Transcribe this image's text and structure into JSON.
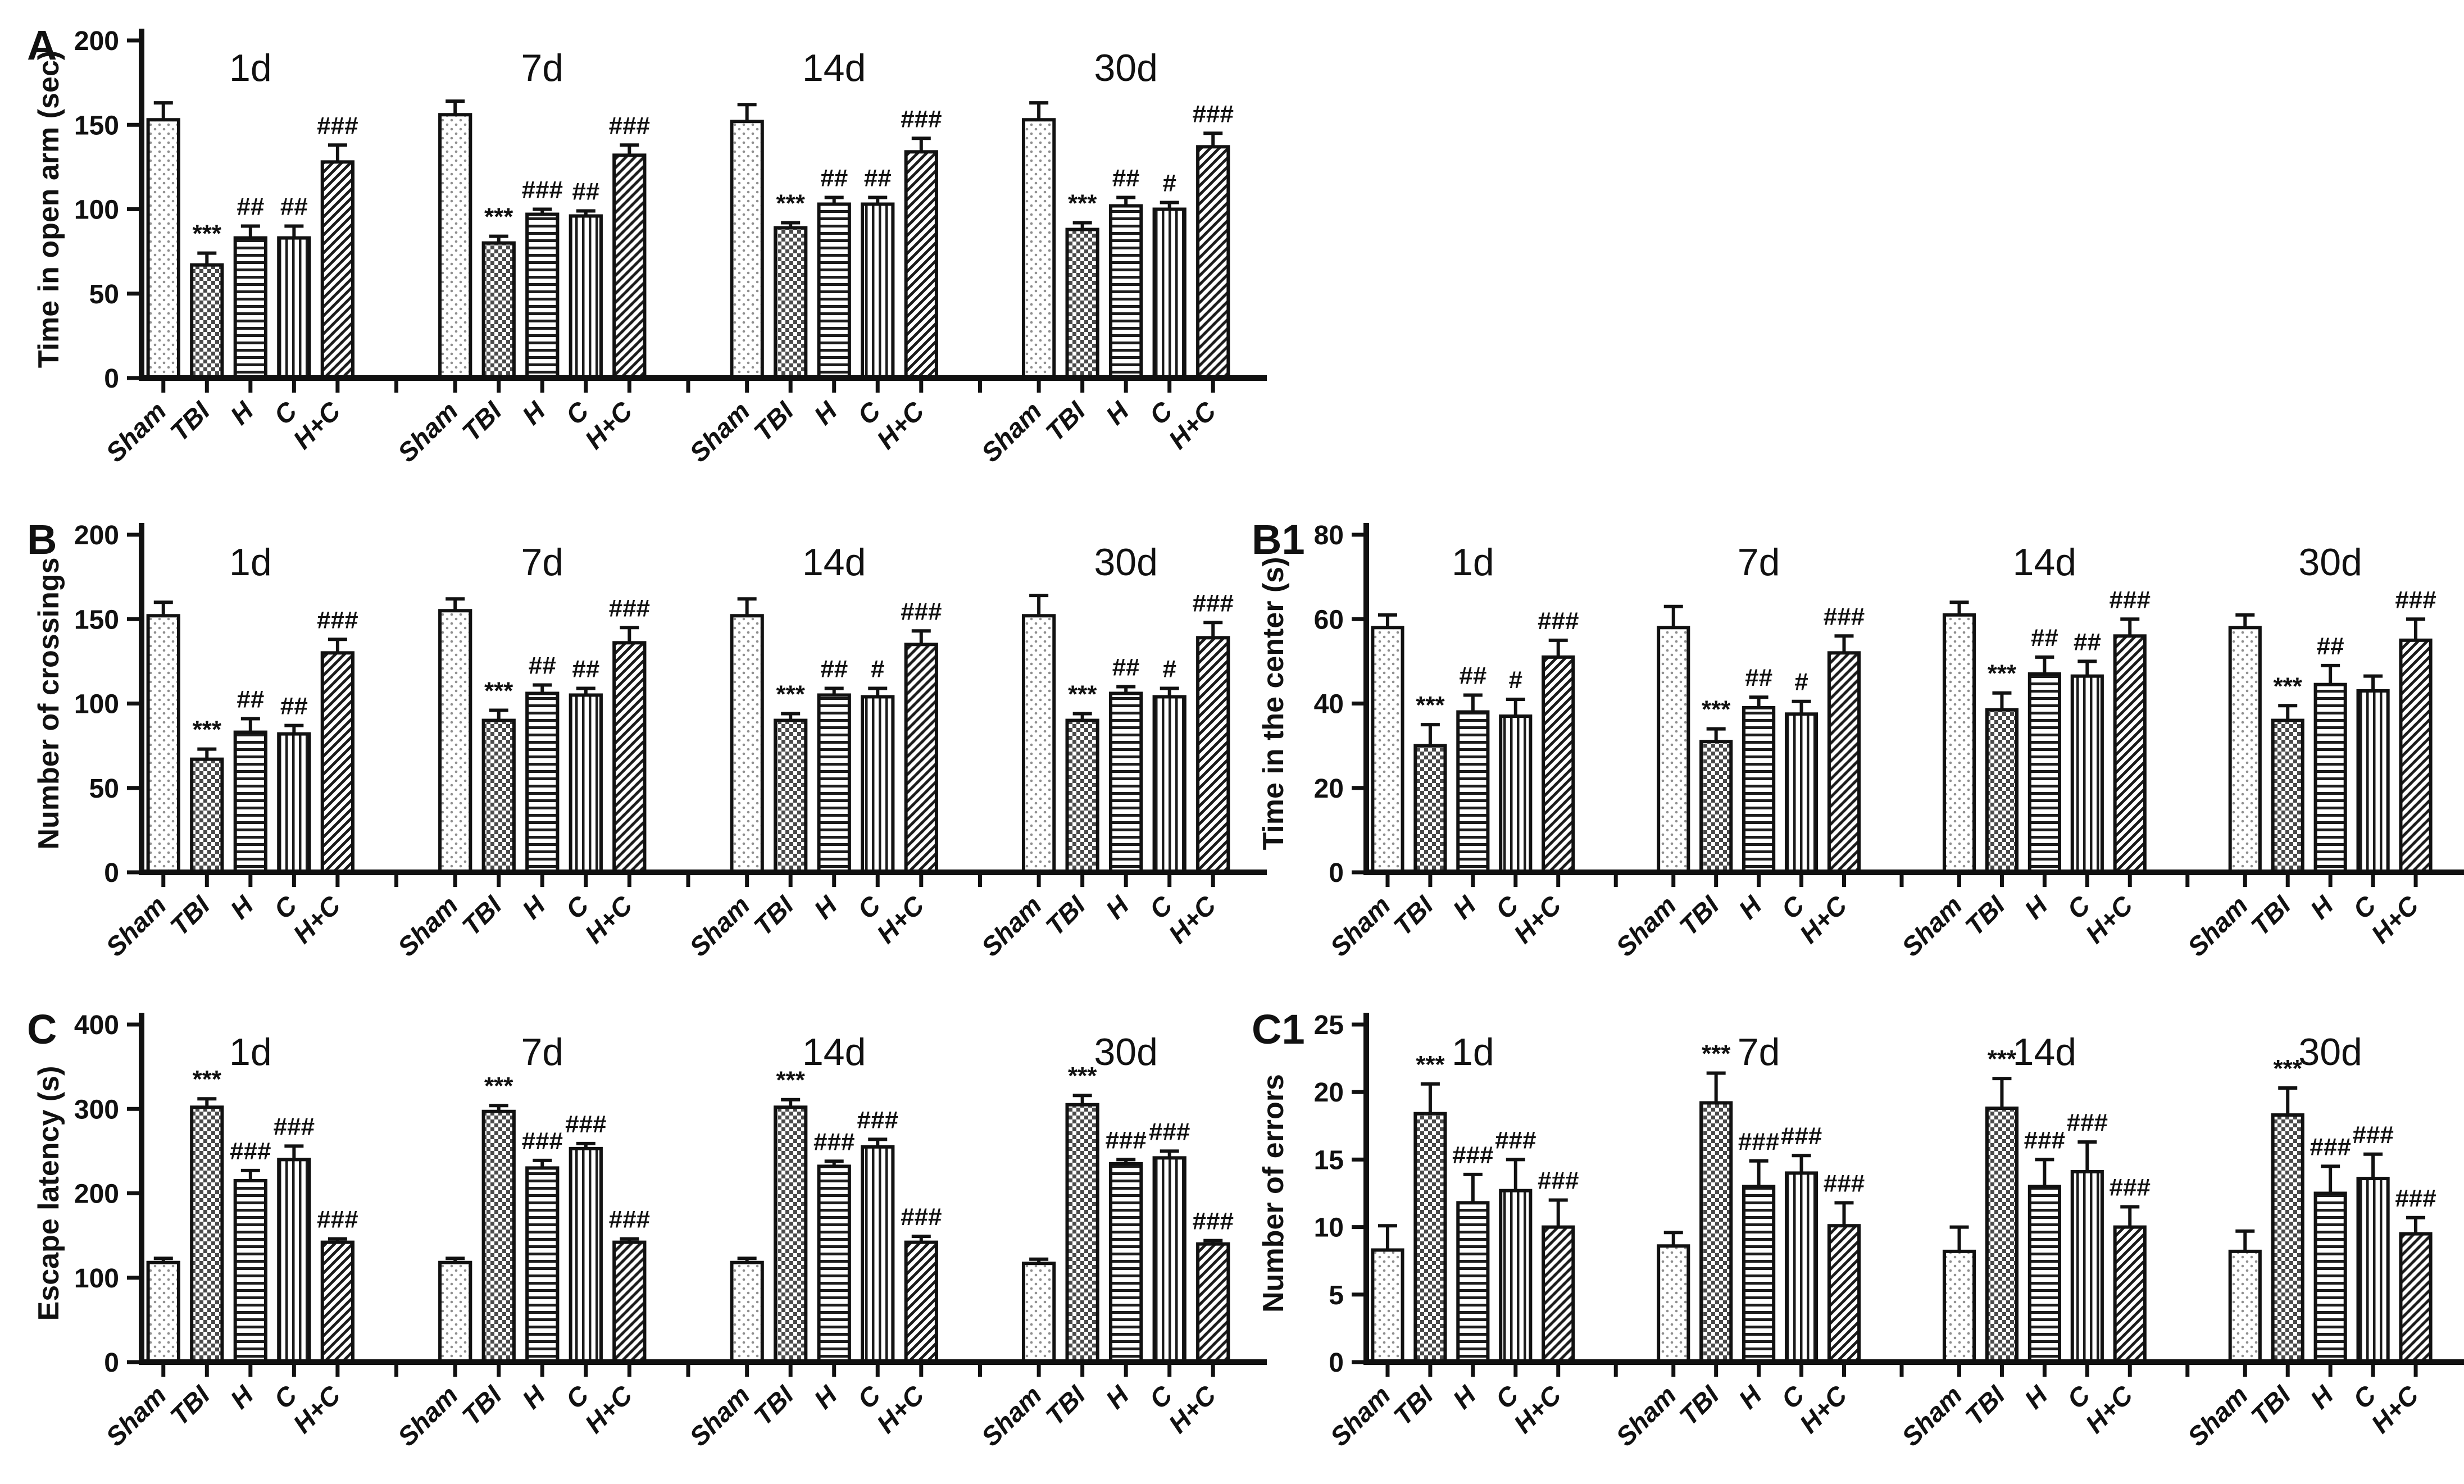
{
  "figure": {
    "background": "#ffffff",
    "ink_color": "#111111",
    "bar_textures": {
      "Sham": "dots",
      "TBI": "checker",
      "H": "hlines",
      "C": "vlines",
      "H+C": "diagonal"
    }
  },
  "chart_data": [
    {
      "type": "bar",
      "panel": "A",
      "ylabel": "Time in open arm (sec)",
      "ylim": [
        0,
        200
      ],
      "yticks": [
        0,
        50,
        100,
        150,
        200
      ],
      "grid": false,
      "categories": [
        "Sham",
        "TBI",
        "H",
        "C",
        "H+C"
      ],
      "series": [
        {
          "name": "1d",
          "values": [
            153,
            67,
            83,
            83,
            128
          ],
          "errors": [
            10,
            7,
            7,
            7,
            10
          ],
          "sig": [
            "",
            "***",
            "##",
            "##",
            "###"
          ]
        },
        {
          "name": "7d",
          "values": [
            156,
            80,
            97,
            96,
            132
          ],
          "errors": [
            8,
            4,
            3,
            3,
            6
          ],
          "sig": [
            "",
            "***",
            "###",
            "##",
            "###"
          ]
        },
        {
          "name": "14d",
          "values": [
            152,
            89,
            103,
            103,
            134
          ],
          "errors": [
            10,
            3,
            4,
            4,
            8
          ],
          "sig": [
            "",
            "***",
            "##",
            "##",
            "###"
          ]
        },
        {
          "name": "30d",
          "values": [
            153,
            88,
            102,
            100,
            137
          ],
          "errors": [
            10,
            4,
            5,
            4,
            8
          ],
          "sig": [
            "",
            "***",
            "##",
            "#",
            "###"
          ]
        }
      ]
    },
    {
      "type": "bar",
      "panel": "B",
      "ylabel": "Number of crossings",
      "ylim": [
        0,
        200
      ],
      "yticks": [
        0,
        50,
        100,
        150,
        200
      ],
      "grid": false,
      "categories": [
        "Sham",
        "TBI",
        "H",
        "C",
        "H+C"
      ],
      "series": [
        {
          "name": "1d",
          "values": [
            152,
            67,
            83,
            82,
            130
          ],
          "errors": [
            8,
            6,
            8,
            5,
            8
          ],
          "sig": [
            "",
            "***",
            "##",
            "##",
            "###"
          ]
        },
        {
          "name": "7d",
          "values": [
            155,
            90,
            106,
            105,
            136
          ],
          "errors": [
            7,
            6,
            5,
            4,
            9
          ],
          "sig": [
            "",
            "***",
            "##",
            "##",
            "###"
          ]
        },
        {
          "name": "14d",
          "values": [
            152,
            90,
            105,
            104,
            135
          ],
          "errors": [
            10,
            4,
            4,
            5,
            8
          ],
          "sig": [
            "",
            "***",
            "##",
            "#",
            "###"
          ]
        },
        {
          "name": "30d",
          "values": [
            152,
            90,
            106,
            104,
            139
          ],
          "errors": [
            12,
            4,
            4,
            5,
            9
          ],
          "sig": [
            "",
            "***",
            "##",
            "#",
            "###"
          ]
        }
      ]
    },
    {
      "type": "bar",
      "panel": "B1",
      "ylabel": "Time in the center (s)",
      "ylim": [
        0,
        80
      ],
      "yticks": [
        0,
        20,
        40,
        60,
        80
      ],
      "grid": false,
      "categories": [
        "Sham",
        "TBI",
        "H",
        "C",
        "H+C"
      ],
      "series": [
        {
          "name": "1d",
          "values": [
            58,
            30,
            38,
            37,
            51
          ],
          "errors": [
            3,
            5,
            4,
            4,
            4
          ],
          "sig": [
            "",
            "***",
            "##",
            "#",
            "###"
          ]
        },
        {
          "name": "7d",
          "values": [
            58,
            31,
            39,
            37.5,
            52
          ],
          "errors": [
            5,
            3,
            2.5,
            3,
            4
          ],
          "sig": [
            "",
            "***",
            "##",
            "#",
            "###"
          ]
        },
        {
          "name": "14d",
          "values": [
            61,
            38.5,
            47,
            46.5,
            56
          ],
          "errors": [
            3,
            4,
            4,
            3.5,
            4
          ],
          "sig": [
            "",
            "***",
            "##",
            "##",
            "###"
          ]
        },
        {
          "name": "30d",
          "values": [
            58,
            36,
            44.5,
            43,
            55
          ],
          "errors": [
            3,
            3.5,
            4.5,
            3.5,
            5
          ],
          "sig": [
            "",
            "***",
            "##",
            "",
            "###"
          ]
        }
      ]
    },
    {
      "type": "bar",
      "panel": "C",
      "ylabel": "Escape latency (s)",
      "ylim": [
        0,
        400
      ],
      "yticks": [
        0,
        100,
        200,
        300,
        400
      ],
      "grid": false,
      "categories": [
        "Sham",
        "TBI",
        "H",
        "C",
        "H+C"
      ],
      "series": [
        {
          "name": "1d",
          "values": [
            118,
            302,
            215,
            240,
            142
          ],
          "errors": [
            5,
            10,
            12,
            16,
            4
          ],
          "sig": [
            "",
            "***",
            "###",
            "###",
            "###"
          ]
        },
        {
          "name": "7d",
          "values": [
            118,
            297,
            230,
            253,
            142
          ],
          "errors": [
            5,
            7,
            9,
            6,
            4
          ],
          "sig": [
            "",
            "***",
            "###",
            "###",
            "###"
          ]
        },
        {
          "name": "14d",
          "values": [
            118,
            302,
            232,
            255,
            142
          ],
          "errors": [
            5,
            9,
            6,
            9,
            7
          ],
          "sig": [
            "",
            "***",
            "###",
            "###",
            "###"
          ]
        },
        {
          "name": "30d",
          "values": [
            117,
            305,
            235,
            242,
            140
          ],
          "errors": [
            5,
            11,
            5,
            8,
            4
          ],
          "sig": [
            "",
            "***",
            "###",
            "###",
            "###"
          ]
        }
      ]
    },
    {
      "type": "bar",
      "panel": "C1",
      "ylabel": "Number of errors",
      "ylim": [
        0,
        25
      ],
      "yticks": [
        0,
        5,
        10,
        15,
        20,
        25
      ],
      "grid": false,
      "categories": [
        "Sham",
        "TBI",
        "H",
        "C",
        "H+C"
      ],
      "series": [
        {
          "name": "1d",
          "values": [
            8.3,
            18.4,
            11.8,
            12.7,
            10
          ],
          "errors": [
            1.8,
            2.2,
            2.1,
            2.3,
            2
          ],
          "sig": [
            "",
            "***",
            "###",
            "###",
            "###"
          ]
        },
        {
          "name": "7d",
          "values": [
            8.6,
            19.2,
            13,
            14,
            10.1
          ],
          "errors": [
            1,
            2.2,
            1.9,
            1.3,
            1.7
          ],
          "sig": [
            "",
            "***",
            "###",
            "###",
            "###"
          ]
        },
        {
          "name": "14d",
          "values": [
            8.2,
            18.8,
            13,
            14.1,
            10
          ],
          "errors": [
            1.8,
            2.2,
            2,
            2.2,
            1.5
          ],
          "sig": [
            "",
            "***",
            "###",
            "###",
            "###"
          ]
        },
        {
          "name": "30d",
          "values": [
            8.2,
            18.3,
            12.5,
            13.6,
            9.5
          ],
          "errors": [
            1.5,
            2,
            2,
            1.8,
            1.2
          ],
          "sig": [
            "",
            "***",
            "###",
            "###",
            "###"
          ]
        }
      ]
    }
  ]
}
